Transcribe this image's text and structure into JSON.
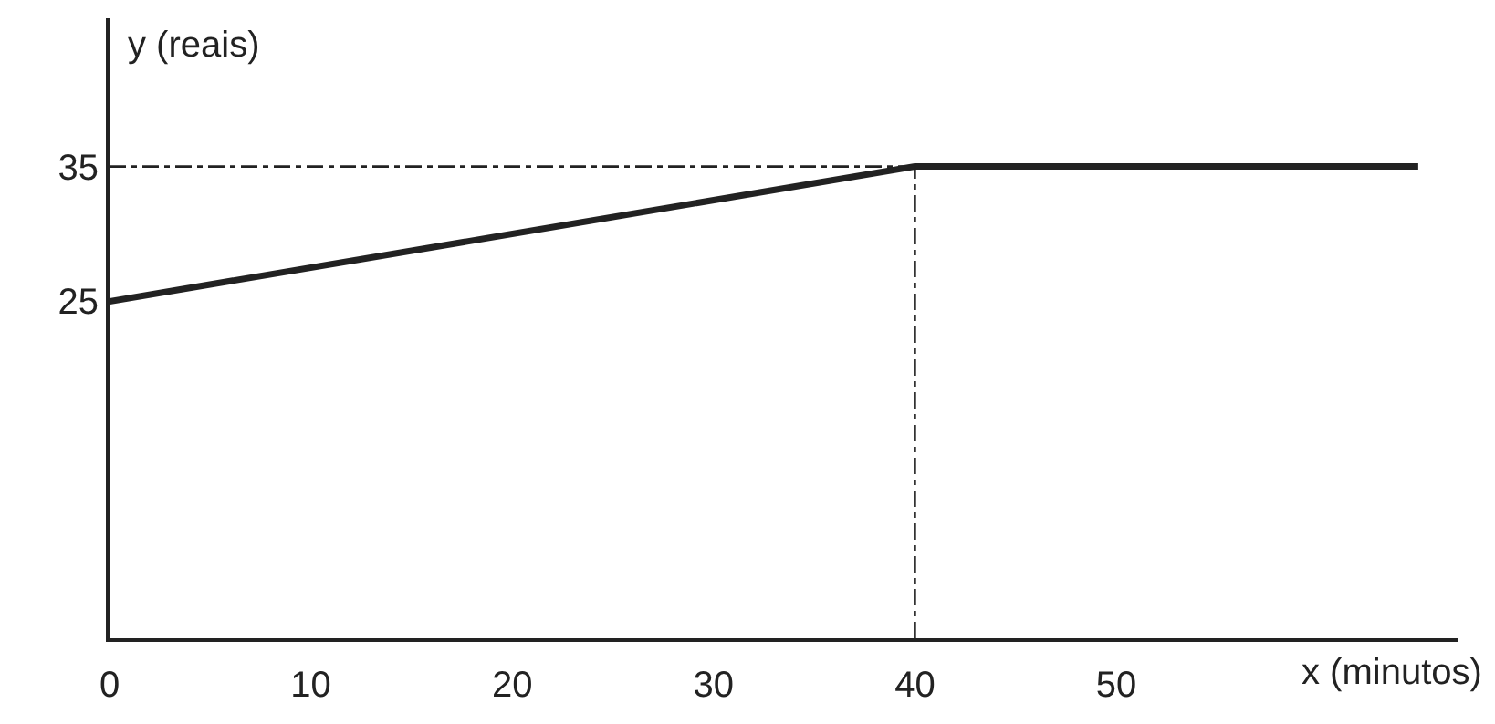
{
  "chart_data": {
    "type": "line",
    "xlabel": "x (minutos)",
    "ylabel": "y (reais)",
    "x": [
      0,
      40,
      65
    ],
    "series": [
      {
        "color": "#222222",
        "values": [
          25,
          35,
          35
        ]
      }
    ],
    "xlim": [
      0,
      67
    ],
    "ylim": [
      0,
      46
    ],
    "xticks": [
      0,
      10,
      20,
      30,
      40,
      50
    ],
    "yticks": [
      25,
      35
    ],
    "ref_lines": [
      {
        "axis": "y",
        "value": 35,
        "label": null,
        "color": "#222222",
        "line_style": "dashed"
      },
      {
        "axis": "x",
        "value": 40,
        "label": null,
        "color": "#222222",
        "line_style": "dashed"
      }
    ],
    "marker": "none",
    "line_style": "solid"
  }
}
